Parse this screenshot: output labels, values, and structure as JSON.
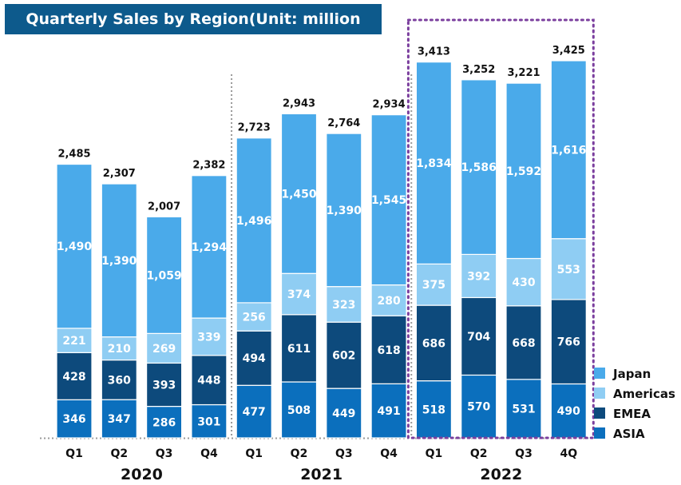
{
  "chart_data": {
    "type": "bar",
    "stacked": true,
    "title": "Quarterly Sales by Region(Unit: million yen)",
    "categories": [
      "Q1",
      "Q2",
      "Q3",
      "Q4",
      "Q1",
      "Q2",
      "Q3",
      "Q4",
      "Q1",
      "Q2",
      "Q3",
      "4Q"
    ],
    "groups": [
      {
        "label": "2020",
        "start": 0,
        "end": 3
      },
      {
        "label": "2021",
        "start": 4,
        "end": 7
      },
      {
        "label": "2022",
        "start": 8,
        "end": 11
      }
    ],
    "series": [
      {
        "name": "ASIA",
        "color": "#0b6fbd",
        "values": [
          346,
          347,
          286,
          301,
          477,
          508,
          449,
          491,
          518,
          570,
          531,
          490
        ]
      },
      {
        "name": "EMEA",
        "color": "#0d4a7c",
        "values": [
          428,
          360,
          393,
          448,
          494,
          611,
          602,
          618,
          686,
          704,
          668,
          766
        ]
      },
      {
        "name": "Americas",
        "color": "#8fcdf3",
        "values": [
          221,
          210,
          269,
          339,
          256,
          374,
          323,
          280,
          375,
          392,
          430,
          553
        ]
      },
      {
        "name": "Japan",
        "color": "#4aaaea",
        "values": [
          1490,
          1390,
          1059,
          1294,
          1496,
          1450,
          1390,
          1545,
          1834,
          1586,
          1592,
          1616
        ]
      }
    ],
    "totals": [
      "2,485",
      "2,307",
      "2,007",
      "2,382",
      "2,723",
      "2,943",
      "2,764",
      "2,934",
      "3,413",
      "3,252",
      "3,221",
      "3,425"
    ],
    "legend_order": [
      "Japan",
      "Americas",
      "EMEA",
      "ASIA"
    ],
    "legend_position": "bottom-right",
    "highlight_group": "2022",
    "grid": false
  }
}
